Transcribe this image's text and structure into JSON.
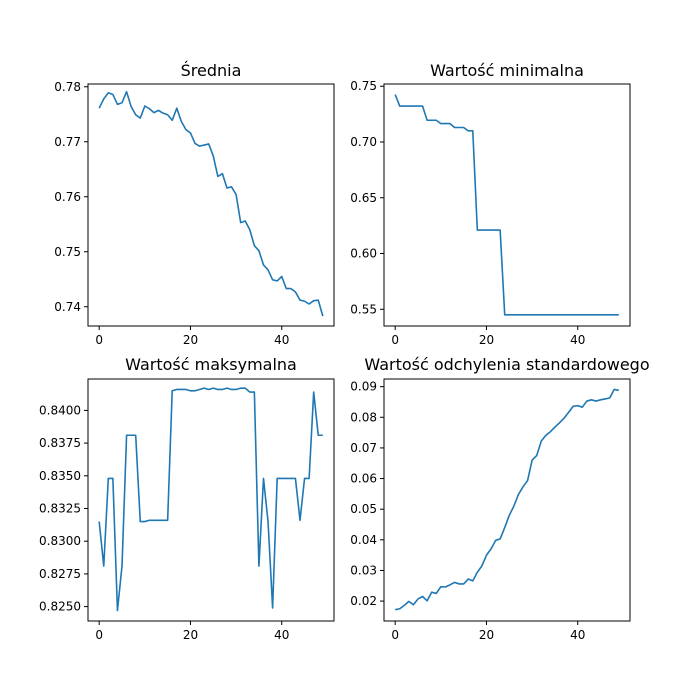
{
  "chart_data": [
    {
      "type": "line",
      "title": "Średnia",
      "xlabel": "",
      "ylabel": "",
      "xlim": [
        -2.45,
        51.45
      ],
      "ylim": [
        0.7365,
        0.7805
      ],
      "xticks": [
        0,
        20,
        40
      ],
      "xtick_labels": [
        "0",
        "20",
        "40"
      ],
      "yticks": [
        0.74,
        0.75,
        0.76,
        0.77,
        0.78
      ],
      "ytick_labels": [
        "0.74",
        "0.75",
        "0.76",
        "0.77",
        "0.78"
      ],
      "color": "#1f77b4",
      "grid": false,
      "x": [
        0,
        1,
        2,
        3,
        4,
        5,
        6,
        7,
        8,
        9,
        10,
        11,
        12,
        13,
        14,
        15,
        16,
        17,
        18,
        19,
        20,
        21,
        22,
        23,
        24,
        25,
        26,
        27,
        28,
        29,
        30,
        31,
        32,
        33,
        34,
        35,
        36,
        37,
        38,
        39,
        40,
        41,
        42,
        43,
        44,
        45,
        46,
        47,
        48,
        49
      ],
      "y": [
        0.7761,
        0.7778,
        0.7789,
        0.7786,
        0.7768,
        0.7771,
        0.7791,
        0.7764,
        0.7749,
        0.7743,
        0.7765,
        0.776,
        0.7753,
        0.7757,
        0.7752,
        0.7749,
        0.7739,
        0.7761,
        0.7737,
        0.7722,
        0.7716,
        0.7697,
        0.7692,
        0.7694,
        0.7696,
        0.7674,
        0.7637,
        0.7642,
        0.7616,
        0.7618,
        0.7604,
        0.7553,
        0.7556,
        0.754,
        0.7511,
        0.7502,
        0.7476,
        0.7467,
        0.7449,
        0.7447,
        0.7455,
        0.7433,
        0.7433,
        0.7427,
        0.7412,
        0.741,
        0.7405,
        0.7411,
        0.7412,
        0.7383
      ]
    },
    {
      "type": "line",
      "title": "Wartość minimalna",
      "xlabel": "",
      "ylabel": "",
      "xlim": [
        -2.45,
        51.45
      ],
      "ylim": [
        0.535,
        0.752
      ],
      "xticks": [
        0,
        20,
        40
      ],
      "xtick_labels": [
        "0",
        "20",
        "40"
      ],
      "yticks": [
        0.55,
        0.6,
        0.65,
        0.7,
        0.75
      ],
      "ytick_labels": [
        "0.55",
        "0.60",
        "0.65",
        "0.70",
        "0.75"
      ],
      "color": "#1f77b4",
      "grid": false,
      "x": [
        0,
        1,
        2,
        3,
        4,
        5,
        6,
        7,
        8,
        9,
        10,
        11,
        12,
        13,
        14,
        15,
        16,
        17,
        18,
        19,
        20,
        21,
        22,
        23,
        24,
        25,
        26,
        27,
        28,
        29,
        30,
        31,
        32,
        33,
        34,
        35,
        36,
        37,
        38,
        39,
        40,
        41,
        42,
        43,
        44,
        45,
        46,
        47,
        48,
        49
      ],
      "y": [
        0.7425,
        0.7322,
        0.7322,
        0.7322,
        0.7322,
        0.7322,
        0.7322,
        0.7195,
        0.7195,
        0.7195,
        0.7165,
        0.7165,
        0.7165,
        0.713,
        0.713,
        0.713,
        0.71,
        0.71,
        0.621,
        0.621,
        0.621,
        0.621,
        0.621,
        0.621,
        0.545,
        0.545,
        0.545,
        0.545,
        0.545,
        0.545,
        0.545,
        0.545,
        0.545,
        0.545,
        0.545,
        0.545,
        0.545,
        0.545,
        0.545,
        0.545,
        0.545,
        0.545,
        0.545,
        0.545,
        0.545,
        0.545,
        0.545,
        0.545,
        0.545,
        0.545
      ]
    },
    {
      "type": "line",
      "title": "Wartość maksymalna",
      "xlabel": "",
      "ylabel": "",
      "xlim": [
        -2.45,
        51.45
      ],
      "ylim": [
        0.8239,
        0.8424
      ],
      "xticks": [
        0,
        20,
        40
      ],
      "xtick_labels": [
        "0",
        "20",
        "40"
      ],
      "yticks": [
        0.825,
        0.8275,
        0.83,
        0.8325,
        0.835,
        0.8375,
        0.84
      ],
      "ytick_labels": [
        "0.8250",
        "0.8275",
        "0.8300",
        "0.8325",
        "0.8350",
        "0.8375",
        "0.8400"
      ],
      "color": "#1f77b4",
      "grid": false,
      "x": [
        0,
        1,
        2,
        3,
        4,
        5,
        6,
        7,
        8,
        9,
        10,
        11,
        12,
        13,
        14,
        15,
        16,
        17,
        18,
        19,
        20,
        21,
        22,
        23,
        24,
        25,
        26,
        27,
        28,
        29,
        30,
        31,
        32,
        33,
        34,
        35,
        36,
        37,
        38,
        39,
        40,
        41,
        42,
        43,
        44,
        45,
        46,
        47,
        48,
        49
      ],
      "y": [
        0.8315,
        0.8281,
        0.8348,
        0.8348,
        0.8247,
        0.8281,
        0.8381,
        0.8381,
        0.8381,
        0.8315,
        0.8315,
        0.8316,
        0.8316,
        0.8316,
        0.8316,
        0.8316,
        0.8415,
        0.8416,
        0.8416,
        0.8416,
        0.8415,
        0.8415,
        0.8416,
        0.8417,
        0.8416,
        0.8417,
        0.8416,
        0.8416,
        0.8417,
        0.8416,
        0.8416,
        0.8417,
        0.8417,
        0.8414,
        0.8414,
        0.8281,
        0.8348,
        0.8315,
        0.8249,
        0.8348,
        0.8348,
        0.8348,
        0.8348,
        0.8348,
        0.8316,
        0.8348,
        0.8348,
        0.8414,
        0.8381,
        0.8381
      ]
    },
    {
      "type": "line",
      "title": "Wartość odchylenia standardowego",
      "xlabel": "",
      "ylabel": "",
      "xlim": [
        -2.45,
        51.45
      ],
      "ylim": [
        0.0135,
        0.0925
      ],
      "xticks": [
        0,
        20,
        40
      ],
      "xtick_labels": [
        "0",
        "20",
        "40"
      ],
      "yticks": [
        0.02,
        0.03,
        0.04,
        0.05,
        0.06,
        0.07,
        0.08,
        0.09
      ],
      "ytick_labels": [
        "0.02",
        "0.03",
        "0.04",
        "0.05",
        "0.06",
        "0.07",
        "0.08",
        "0.09"
      ],
      "color": "#1f77b4",
      "grid": false,
      "x": [
        0,
        1,
        2,
        3,
        4,
        5,
        6,
        7,
        8,
        9,
        10,
        11,
        12,
        13,
        14,
        15,
        16,
        17,
        18,
        19,
        20,
        21,
        22,
        23,
        24,
        25,
        26,
        27,
        28,
        29,
        30,
        31,
        32,
        33,
        34,
        35,
        36,
        37,
        38,
        39,
        40,
        41,
        42,
        43,
        44,
        45,
        46,
        47,
        48,
        49
      ],
      "y": [
        0.0172,
        0.0175,
        0.0186,
        0.0199,
        0.0188,
        0.0207,
        0.0215,
        0.0201,
        0.0229,
        0.0225,
        0.0247,
        0.0246,
        0.0253,
        0.0261,
        0.0256,
        0.0256,
        0.0272,
        0.0266,
        0.0294,
        0.0315,
        0.035,
        0.037,
        0.0398,
        0.0403,
        0.044,
        0.048,
        0.051,
        0.0548,
        0.0573,
        0.0593,
        0.066,
        0.0675,
        0.0722,
        0.0741,
        0.0753,
        0.0768,
        0.0782,
        0.0797,
        0.0816,
        0.0836,
        0.0838,
        0.0833,
        0.0853,
        0.0857,
        0.0853,
        0.0857,
        0.086,
        0.0863,
        0.0891,
        0.0888
      ]
    }
  ]
}
